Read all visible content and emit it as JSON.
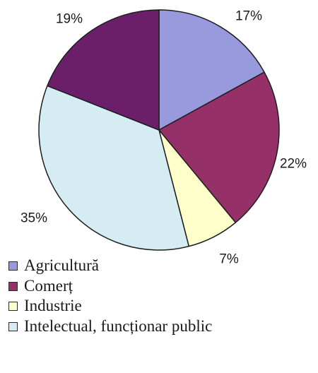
{
  "chart_data": {
    "type": "pie",
    "title": "",
    "slices": [
      {
        "label": "Agricultură",
        "value": 17,
        "value_label": "17%",
        "color": "#9999dd"
      },
      {
        "label": "Comerț",
        "value": 22,
        "value_label": "22%",
        "color": "#953168"
      },
      {
        "label": "Industrie",
        "value": 7,
        "value_label": "7%",
        "color": "#ffffcc"
      },
      {
        "label": "Intelectual, funcționar public",
        "value": 35,
        "value_label": "35%",
        "color": "#d5ecf2"
      },
      {
        "label": "",
        "value": 19,
        "value_label": "19%",
        "color": "#6b1f6b"
      }
    ],
    "start_angle": "top",
    "direction": "clockwise",
    "legend_position": "bottom-left"
  }
}
